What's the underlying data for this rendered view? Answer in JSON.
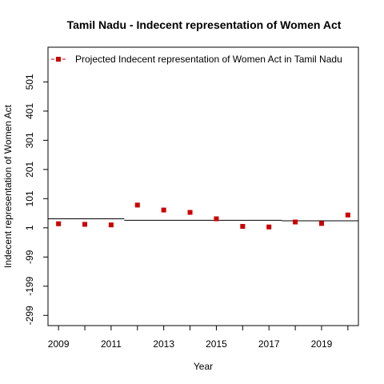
{
  "chart_data": {
    "type": "scatter",
    "title": "Tamil Nadu  -  Indecent representation of Women Act",
    "xlabel": "Year",
    "ylabel": "Indecent representation of Women Act",
    "xlim": [
      2008.6,
      2020.4
    ],
    "ylim": [
      -334,
      620
    ],
    "x_ticks": [
      2009,
      2011,
      2013,
      2015,
      2017,
      2019
    ],
    "x_minor_ticks": [
      2010,
      2012,
      2014,
      2016,
      2018,
      2020
    ],
    "y_ticks": [
      -299,
      -199,
      -99,
      1,
      101,
      201,
      301,
      401,
      501
    ],
    "legend": {
      "label": "Projected  Indecent representation of Women Act  in  Tamil Nadu",
      "position": "top"
    },
    "series": [
      {
        "name": "Projected  Indecent representation of Women Act  in  Tamil Nadu",
        "color": "#cc0000",
        "x": [
          2009,
          2010,
          2011,
          2012,
          2013,
          2014,
          2015,
          2016,
          2017,
          2018,
          2019,
          2020
        ],
        "y": [
          15,
          13,
          11,
          79,
          62,
          54,
          32,
          6,
          4,
          21,
          16,
          45
        ]
      }
    ],
    "reference_lines": [
      {
        "x": [
          2008.6,
          2011.5
        ],
        "y": [
          32,
          32
        ]
      },
      {
        "x": [
          2011.5,
          2017.5
        ],
        "y": [
          27,
          27
        ]
      },
      {
        "x": [
          2017.5,
          2020.4
        ],
        "y": [
          25,
          25
        ]
      }
    ]
  }
}
